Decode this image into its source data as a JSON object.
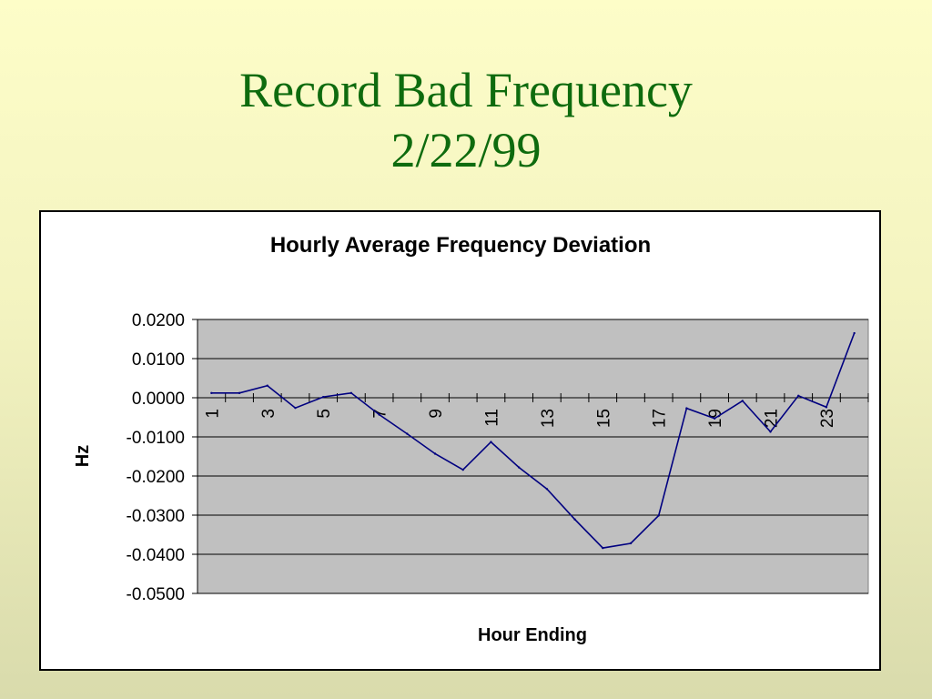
{
  "slide": {
    "title_line1": "Record Bad Frequency",
    "title_line2": "2/22/99"
  },
  "chart_data": {
    "type": "line",
    "title": "Hourly Average Frequency Deviation",
    "xlabel": "Hour Ending",
    "ylabel": "Hz",
    "ylim": [
      -0.05,
      0.02
    ],
    "yticks": [
      0.02,
      0.01,
      0.0,
      -0.01,
      -0.02,
      -0.03,
      -0.04,
      -0.05
    ],
    "ytick_labels": [
      "0.0200",
      "0.0100",
      "0.0000",
      "-0.0100",
      "-0.0200",
      "-0.0300",
      "-0.0400",
      "-0.0500"
    ],
    "x": [
      1,
      2,
      3,
      4,
      5,
      6,
      7,
      8,
      9,
      10,
      11,
      12,
      13,
      14,
      15,
      16,
      17,
      18,
      19,
      20,
      21,
      22,
      23,
      24
    ],
    "xtick_labels": [
      "1",
      "3",
      "5",
      "7",
      "9",
      "11",
      "13",
      "15",
      "17",
      "19",
      "21",
      "23"
    ],
    "xtick_values": [
      1,
      3,
      5,
      7,
      9,
      11,
      13,
      15,
      17,
      19,
      21,
      23
    ],
    "series": [
      {
        "values": [
          0.0012,
          0.0012,
          0.0031,
          -0.0026,
          0.0002,
          0.0012,
          -0.0043,
          -0.0092,
          -0.0143,
          -0.0184,
          -0.0113,
          -0.0178,
          -0.0233,
          -0.0311,
          -0.0384,
          -0.0372,
          -0.0301,
          -0.0027,
          -0.0053,
          -0.0008,
          -0.0087,
          0.0005,
          -0.0024,
          0.0165
        ],
        "color": "#000080"
      }
    ],
    "grid": true,
    "plot_background": "#c0c0c0",
    "legend": "none"
  }
}
